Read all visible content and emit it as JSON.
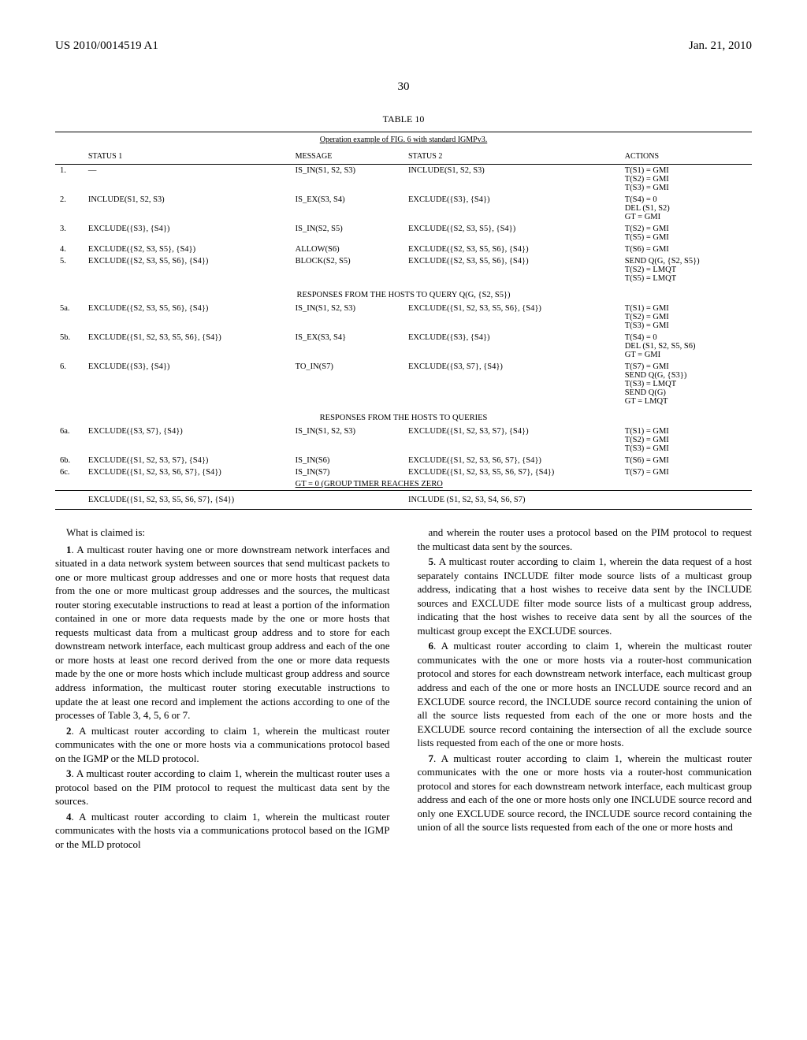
{
  "header": {
    "pub_number": "US 2010/0014519 A1",
    "pub_date": "Jan. 21, 2010"
  },
  "page_number": "30",
  "table": {
    "label": "TABLE 10",
    "subtitle": "Operation example of FIG. 6 with standard IGMPv3.",
    "columns": [
      "",
      "STATUS 1",
      "MESSAGE",
      "STATUS 2",
      "ACTIONS"
    ],
    "sections": [
      {
        "title": null,
        "rows": [
          [
            "1.",
            "—",
            "IS_IN(S1, S2, S3)",
            "INCLUDE(S1, S2, S3)",
            "T(S1) = GMI\nT(S2) = GMI\nT(S3) = GMI"
          ],
          [
            "2.",
            "INCLUDE(S1, S2, S3)",
            "IS_EX(S3, S4)",
            "EXCLUDE({S3}, {S4})",
            "T(S4) = 0\nDEL (S1, S2)\nGT = GMI"
          ],
          [
            "3.",
            "EXCLUDE({S3}, {S4})",
            "IS_IN(S2, S5)",
            "EXCLUDE({S2, S3, S5}, {S4})",
            "T(S2) = GMI\nT(S5) = GMI"
          ],
          [
            "4.",
            "EXCLUDE({S2, S3, S5}, {S4})",
            "ALLOW(S6)",
            "EXCLUDE({S2, S3, S5, S6}, {S4})",
            "T(S6) = GMI"
          ],
          [
            "5.",
            "EXCLUDE({S2, S3, S5, S6}, {S4})",
            "BLOCK(S2, S5)",
            "EXCLUDE({S2, S3, S5, S6}, {S4})",
            "SEND Q(G, {S2, S5})\nT(S2) = LMQT\nT(S5) = LMQT"
          ]
        ]
      },
      {
        "title": "RESPONSES FROM THE HOSTS TO QUERY Q(G, {S2, S5})",
        "rows": [
          [
            "5a.",
            "EXCLUDE({S2, S3, S5, S6}, {S4})",
            "IS_IN(S1, S2, S3)",
            "EXCLUDE({S1, S2, S3, S5, S6}, {S4})",
            "T(S1) = GMI\nT(S2) = GMI\nT(S3) = GMI"
          ],
          [
            "5b.",
            "EXCLUDE({S1, S2, S3, S5, S6}, {S4})",
            "IS_EX(S3, S4}",
            "EXCLUDE({S3}, {S4})",
            "T(S4) = 0\nDEL (S1, S2, S5, S6)\nGT = GMI"
          ],
          [
            "6.",
            "EXCLUDE({S3}, {S4})",
            "TO_IN(S7)",
            "EXCLUDE({S3, S7}, {S4})",
            "T(S7) = GMI\nSEND Q(G, {S3})\nT(S3) = LMQT\nSEND Q(G)\nGT = LMQT"
          ]
        ]
      },
      {
        "title": "RESPONSES FROM THE HOSTS TO QUERIES",
        "rows": [
          [
            "6a.",
            "EXCLUDE({S3, S7}, {S4})",
            "IS_IN(S1, S2, S3)",
            "EXCLUDE({S1, S2, S3, S7}, {S4})",
            "T(S1) = GMI\nT(S2) = GMI\nT(S3) = GMI"
          ],
          [
            "6b.",
            "EXCLUDE({S1, S2, S3, S7}, {S4})",
            "IS_IN(S6)",
            "EXCLUDE({S1, S2, S3, S6, S7}, {S4})",
            "T(S6) = GMI"
          ],
          [
            "6c.",
            "EXCLUDE({S1, S2, S3, S6, S7}, {S4})",
            "IS_IN(S7)",
            "EXCLUDE({S1, S2, S3, S5, S6, S7}, {S4})",
            "T(S7) = GMI"
          ]
        ],
        "footer_msg": "GT = 0 (GROUP TIMER REACHES ZERO"
      }
    ],
    "last_row": [
      "",
      "EXCLUDE({S1, S2, S3, S5, S6, S7}, {S4})",
      "",
      "INCLUDE (S1, S2, S3, S4, S6, S7)",
      ""
    ]
  },
  "claims": {
    "intro": "What is claimed is:",
    "left": [
      "1. A multicast router having one or more downstream network interfaces and situated in a data network system between sources that send multicast packets to one or more multicast group addresses and one or more hosts that request data from the one or more multicast group addresses and the sources, the multicast router storing executable instructions to read at least a portion of the information contained in one or more data requests made by the one or more hosts that requests multicast data from a multicast group address and to store for each downstream network interface, each multicast group address and each of the one or more hosts at least one record derived from the one or more data requests made by the one or more hosts which include multicast group address and source address information, the multicast router storing executable instructions to update the at least one record and implement the actions according to one of the processes of Table 3, 4, 5, 6 or 7.",
      "2. A multicast router according to claim 1, wherein the multicast router communicates with the one or more hosts via a communications protocol based on the IGMP or the MLD protocol.",
      "3. A multicast router according to claim 1, wherein the multicast router uses a protocol based on the PIM protocol to request the multicast data sent by the sources.",
      "4. A multicast router according to claim 1, wherein the multicast router communicates with the hosts via a communications protocol based on the IGMP or the MLD protocol"
    ],
    "right": [
      "and wherein the router uses a protocol based on the PIM protocol to request the multicast data sent by the sources.",
      "5. A multicast router according to claim 1, wherein the data request of a host separately contains INCLUDE filter mode source lists of a multicast group address, indicating that a host wishes to receive data sent by the INCLUDE sources and EXCLUDE filter mode source lists of a multicast group address, indicating that the host wishes to receive data sent by all the sources of the multicast group except the EXCLUDE sources.",
      "6. A multicast router according to claim 1, wherein the multicast router communicates with the one or more hosts via a router-host communication protocol and stores for each downstream network interface, each multicast group address and each of the one or more hosts an INCLUDE source record and an EXCLUDE source record, the INCLUDE source record containing the union of all the source lists requested from each of the one or more hosts and the EXCLUDE source record containing the intersection of all the exclude source lists requested from each of the one or more hosts.",
      "7. A multicast router according to claim 1, wherein the multicast router communicates with the one or more hosts via a router-host communication protocol and stores for each downstream network interface, each multicast group address and each of the one or more hosts only one INCLUDE source record and only one EXCLUDE source record, the INCLUDE source record containing the union of all the source lists requested from each of the one or more hosts and"
    ]
  }
}
